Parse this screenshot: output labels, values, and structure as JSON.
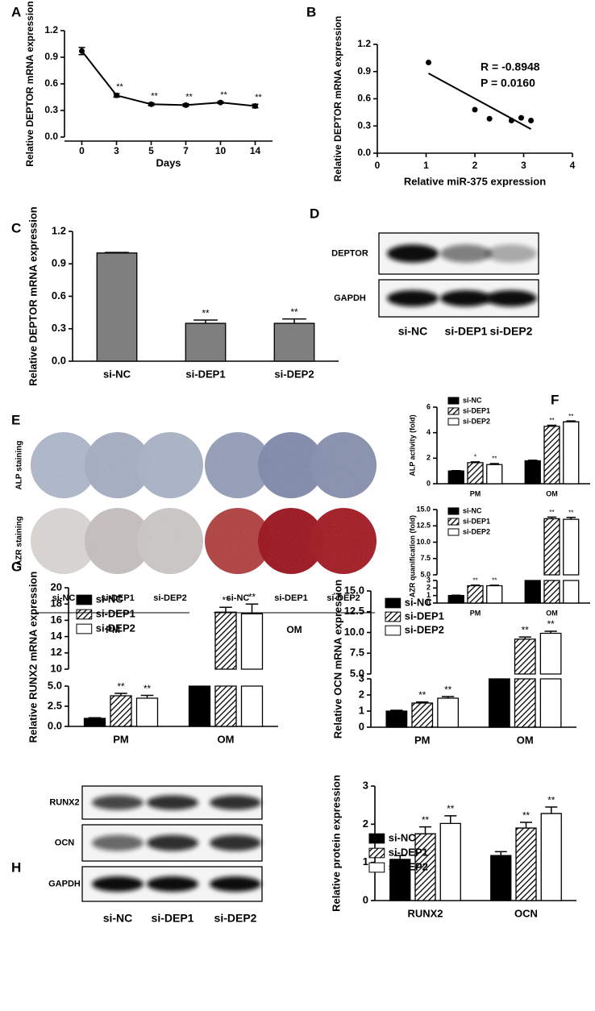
{
  "panel_letters": [
    "A",
    "B",
    "C",
    "D",
    "E",
    "F",
    "G",
    "H"
  ],
  "chart_data": [
    {
      "type": "line",
      "ylabel": "Relative DEPTOR mRNA expression",
      "xlabel": "Days",
      "categories": [
        "0",
        "3",
        "5",
        "7",
        "10",
        "14"
      ],
      "color": "#000000",
      "values": [
        0.97,
        0.47,
        0.37,
        0.36,
        0.39,
        0.35
      ],
      "errors": [
        0.04,
        0.02,
        0.015,
        0.015,
        0.01,
        0.02
      ],
      "annotations": [
        null,
        "**",
        "**",
        "**",
        "**",
        "**"
      ],
      "ylim": [
        0,
        1.2
      ],
      "yticks": [
        {
          "value": 0,
          "label": "0.0"
        },
        0.3,
        0.6,
        0.9,
        1.2
      ]
    },
    {
      "type": "scatter",
      "ylabel": "Relative DEPTOR mRNA expression",
      "xlabel": "Relative miR-375 expression",
      "x": [
        1.05,
        2.0,
        2.3,
        2.75,
        2.95,
        3.15
      ],
      "values": [
        1.0,
        0.48,
        0.38,
        0.36,
        0.39,
        0.36
      ],
      "color": "#000000",
      "annotations": [
        "R = -0.8948",
        "P = 0.0160"
      ],
      "xlim": [
        0,
        4
      ],
      "xticks": [
        0,
        1,
        2,
        3,
        4
      ],
      "ylim": [
        0,
        1.2
      ],
      "yticks": [
        {
          "value": 0,
          "label": "0.0"
        },
        0.3,
        0.6,
        0.9,
        1.2
      ]
    },
    {
      "type": "bar",
      "ylabel": "Relative DEPTOR mRNA expression",
      "categories": [
        "si-NC",
        "si-DEP1",
        "si-DEP2"
      ],
      "color": "#7f7f7f",
      "values": [
        1.0,
        0.35,
        0.35
      ],
      "errors": [
        0.005,
        0.03,
        0.04
      ],
      "annotations": [
        null,
        "**",
        "**"
      ],
      "ylim": [
        0,
        1.2
      ],
      "yticks": [
        {
          "value": 0,
          "label": "0.0"
        },
        0.3,
        0.6,
        0.9,
        1.2
      ]
    },
    {
      "type": "bar",
      "ylabel": "ALP activity (fold)",
      "categories": [
        "PM",
        "OM"
      ],
      "series": [
        {
          "name": "si-NC",
          "color": "#000000",
          "hatch": false,
          "values": [
            1.0,
            1.8
          ],
          "errors": [
            0.03,
            0.04
          ],
          "annotations": [
            null,
            null
          ]
        },
        {
          "name": "si-DEP1",
          "color": "#ffffff",
          "hatch": true,
          "values": [
            1.65,
            4.5
          ],
          "errors": [
            0.06,
            0.08
          ],
          "annotations": [
            "*",
            "**"
          ]
        },
        {
          "name": "si-DEP2",
          "color": "#ffffff",
          "hatch": false,
          "values": [
            1.5,
            4.85
          ],
          "errors": [
            0.08,
            0.07
          ],
          "annotations": [
            "**",
            "**"
          ]
        }
      ],
      "ylim": [
        0,
        6
      ],
      "yticks": [
        0,
        2,
        4,
        6
      ]
    },
    {
      "type": "bar",
      "ylabel": "AZR quanification (fold)",
      "categories": [
        "PM",
        "OM"
      ],
      "series": [
        {
          "name": "si-NC",
          "color": "#000000",
          "hatch": false,
          "values": [
            1.0,
            3.0
          ],
          "errors": [
            0.05,
            null
          ],
          "annotations": [
            null,
            null
          ]
        },
        {
          "name": "si-DEP1",
          "color": "#ffffff",
          "hatch": true,
          "values": [
            2.3,
            13.6
          ],
          "errors": [
            0.08,
            0.25
          ],
          "annotations": [
            "**",
            "**"
          ]
        },
        {
          "name": "si-DEP2",
          "color": "#ffffff",
          "hatch": false,
          "values": [
            2.3,
            13.5
          ],
          "errors": [
            0.07,
            0.3
          ],
          "annotations": [
            "**",
            "**"
          ]
        }
      ],
      "ylim": [
        0,
        15
      ],
      "ybreak": [
        3,
        5
      ],
      "yticks": [
        0,
        1,
        2,
        3,
        {
          "value": 5,
          "label": "5.0"
        },
        7.5,
        {
          "value": 10,
          "label": "10.0"
        },
        12.5,
        {
          "value": 15,
          "label": "15.0"
        }
      ]
    },
    {
      "type": "bar",
      "ylabel": "Relative RUNX2 mRNA expression",
      "categories": [
        "PM",
        "OM"
      ],
      "series": [
        {
          "name": "si-NC",
          "color": "#000000",
          "hatch": false,
          "values": [
            1.0,
            5.0
          ],
          "errors": [
            0.08,
            null
          ],
          "annotations": [
            null,
            null
          ]
        },
        {
          "name": "si-DEP1",
          "color": "#ffffff",
          "hatch": true,
          "values": [
            3.8,
            17.0
          ],
          "errors": [
            0.3,
            0.6
          ],
          "annotations": [
            "**",
            "**"
          ]
        },
        {
          "name": "si-DEP2",
          "color": "#ffffff",
          "hatch": false,
          "values": [
            3.5,
            16.8
          ],
          "errors": [
            0.35,
            1.2
          ],
          "annotations": [
            "**",
            "**"
          ]
        }
      ],
      "ylim": [
        0,
        20
      ],
      "ybreak": [
        5,
        10
      ],
      "yticks": [
        {
          "value": 0,
          "label": "0.0"
        },
        2.5,
        {
          "value": 5,
          "label": "5.0"
        },
        10,
        12,
        14,
        16,
        18,
        20
      ]
    },
    {
      "type": "bar",
      "ylabel": "Relative OCN mRNA expression",
      "categories": [
        "PM",
        "OM"
      ],
      "series": [
        {
          "name": "si-NC",
          "color": "#000000",
          "hatch": false,
          "values": [
            1.0,
            3.0
          ],
          "errors": [
            0.05,
            null
          ],
          "annotations": [
            null,
            null
          ]
        },
        {
          "name": "si-DEP1",
          "color": "#ffffff",
          "hatch": true,
          "values": [
            1.5,
            9.2
          ],
          "errors": [
            0.06,
            0.25
          ],
          "annotations": [
            "**",
            "**"
          ]
        },
        {
          "name": "si-DEP2",
          "color": "#ffffff",
          "hatch": false,
          "values": [
            1.8,
            9.9
          ],
          "errors": [
            0.1,
            0.25
          ],
          "annotations": [
            "**",
            "**"
          ]
        }
      ],
      "ylim": [
        0,
        15
      ],
      "ybreak": [
        3,
        5
      ],
      "yticks": [
        0,
        1,
        2,
        3,
        {
          "value": 5,
          "label": "5.0"
        },
        7.5,
        {
          "value": 10,
          "label": "10.0"
        },
        12.5,
        {
          "value": 15,
          "label": "15.0"
        }
      ]
    },
    {
      "type": "bar",
      "ylabel": "Relative protein expression",
      "categories": [
        "RUNX2",
        "OCN"
      ],
      "series": [
        {
          "name": "si-NC",
          "color": "#000000",
          "hatch": false,
          "values": [
            1.08,
            1.18
          ],
          "errors": [
            0.1,
            0.1
          ],
          "annotations": [
            null,
            null
          ]
        },
        {
          "name": "si-DEP1",
          "color": "#ffffff",
          "hatch": true,
          "values": [
            1.75,
            1.9
          ],
          "errors": [
            0.18,
            0.15
          ],
          "annotations": [
            "**",
            "**"
          ]
        },
        {
          "name": "si-DEP2",
          "color": "#ffffff",
          "hatch": false,
          "values": [
            2.02,
            2.28
          ],
          "errors": [
            0.2,
            0.17
          ],
          "annotations": [
            "**",
            "**"
          ]
        }
      ],
      "ylim": [
        0,
        3
      ],
      "yticks": [
        0,
        1,
        2,
        3
      ]
    }
  ],
  "blot_D": {
    "rows": [
      "DEPTOR",
      "GAPDH"
    ],
    "lanes": [
      "si-NC",
      "si-DEP1",
      "si-DEP2"
    ]
  },
  "staining_E": {
    "rows": [
      "ALP staining",
      "AZR staining"
    ],
    "lanes": [
      "si-NC",
      "si-DEP1",
      "si-DEP2",
      "si-NC",
      "si-DEP1",
      "si-DEP2"
    ],
    "groups": [
      "PM",
      "OM"
    ]
  },
  "blot_H": {
    "rows": [
      "RUNX2",
      "OCN",
      "GAPDH"
    ],
    "lanes": [
      "si-NC",
      "si-DEP1",
      "si-DEP2"
    ]
  }
}
